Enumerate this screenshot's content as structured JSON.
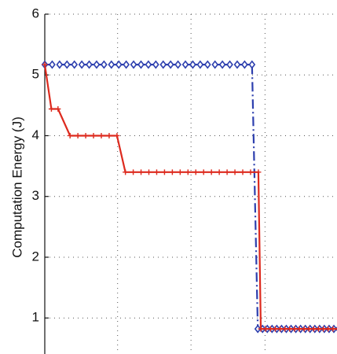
{
  "chart_data": {
    "type": "line",
    "ylabel": "Computation Energy (J)",
    "xlim": [
      0,
      50
    ],
    "ylim": [
      0.2,
      6
    ],
    "yticks": [
      1,
      2,
      3,
      4,
      5,
      6
    ],
    "xgrid": [
      12.1,
      24.3,
      36.6,
      48.8
    ],
    "grid": true,
    "grid_style": "dotted",
    "series": [
      {
        "color": "#2d3fae",
        "line_style": "dash-dot",
        "marker": "diamond",
        "points": [
          [
            0.0,
            5.17
          ],
          [
            1.23,
            5.17
          ],
          [
            2.46,
            5.17
          ],
          [
            3.69,
            5.17
          ],
          [
            4.92,
            5.17
          ],
          [
            6.15,
            5.17
          ],
          [
            7.38,
            5.17
          ],
          [
            8.61,
            5.17
          ],
          [
            9.84,
            5.17
          ],
          [
            11.07,
            5.17
          ],
          [
            12.3,
            5.17
          ],
          [
            13.53,
            5.17
          ],
          [
            14.76,
            5.17
          ],
          [
            15.99,
            5.17
          ],
          [
            17.22,
            5.17
          ],
          [
            18.45,
            5.17
          ],
          [
            19.68,
            5.17
          ],
          [
            20.91,
            5.17
          ],
          [
            22.14,
            5.17
          ],
          [
            23.37,
            5.17
          ],
          [
            24.6,
            5.17
          ],
          [
            25.83,
            5.17
          ],
          [
            27.06,
            5.17
          ],
          [
            28.29,
            5.17
          ],
          [
            29.52,
            5.17
          ],
          [
            30.75,
            5.17
          ],
          [
            31.98,
            5.17
          ],
          [
            33.21,
            5.17
          ],
          [
            34.44,
            5.17
          ],
          [
            35.4,
            0.82
          ],
          [
            36.19,
            0.82
          ],
          [
            36.98,
            0.82
          ],
          [
            37.77,
            0.82
          ],
          [
            38.56,
            0.82
          ],
          [
            39.35,
            0.82
          ],
          [
            40.14,
            0.82
          ],
          [
            40.93,
            0.82
          ],
          [
            41.72,
            0.82
          ],
          [
            42.51,
            0.82
          ],
          [
            43.3,
            0.82
          ],
          [
            44.09,
            0.82
          ],
          [
            44.88,
            0.82
          ],
          [
            45.67,
            0.82
          ],
          [
            46.46,
            0.82
          ],
          [
            47.25,
            0.82
          ],
          [
            48.04,
            0.82
          ],
          [
            48.83,
            0.82
          ],
          [
            49.62,
            0.82
          ]
        ]
      },
      {
        "color": "#dd2a1e",
        "line_style": "solid",
        "marker": "plus",
        "points": [
          [
            0.0,
            5.17
          ],
          [
            1.1,
            4.44
          ],
          [
            2.2,
            4.44
          ],
          [
            4.2,
            4.0
          ],
          [
            5.5,
            4.0
          ],
          [
            6.8,
            4.0
          ],
          [
            8.1,
            4.0
          ],
          [
            9.4,
            4.0
          ],
          [
            10.7,
            4.0
          ],
          [
            12.0,
            4.0
          ],
          [
            13.4,
            3.4
          ],
          [
            14.7,
            3.4
          ],
          [
            16.0,
            3.4
          ],
          [
            17.3,
            3.4
          ],
          [
            18.6,
            3.4
          ],
          [
            19.9,
            3.4
          ],
          [
            21.2,
            3.4
          ],
          [
            22.5,
            3.4
          ],
          [
            23.8,
            3.4
          ],
          [
            25.1,
            3.4
          ],
          [
            26.4,
            3.4
          ],
          [
            27.7,
            3.4
          ],
          [
            29.0,
            3.4
          ],
          [
            30.3,
            3.4
          ],
          [
            31.6,
            3.4
          ],
          [
            32.9,
            3.4
          ],
          [
            34.2,
            3.4
          ],
          [
            35.5,
            3.4
          ],
          [
            35.9,
            0.82
          ],
          [
            36.7,
            0.82
          ],
          [
            37.5,
            0.82
          ],
          [
            38.3,
            0.82
          ],
          [
            39.1,
            0.82
          ],
          [
            39.9,
            0.82
          ],
          [
            40.7,
            0.82
          ],
          [
            41.5,
            0.82
          ],
          [
            42.3,
            0.82
          ],
          [
            43.1,
            0.82
          ],
          [
            43.9,
            0.82
          ],
          [
            44.7,
            0.82
          ],
          [
            45.5,
            0.82
          ],
          [
            46.3,
            0.82
          ],
          [
            47.1,
            0.82
          ],
          [
            47.9,
            0.82
          ],
          [
            48.7,
            0.82
          ],
          [
            49.5,
            0.82
          ]
        ]
      }
    ]
  }
}
